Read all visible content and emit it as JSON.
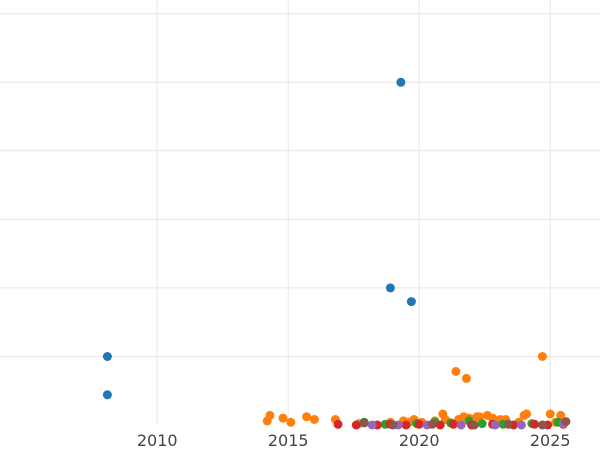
{
  "chart_data": {
    "type": "scatter",
    "title": "",
    "xlabel": "",
    "ylabel": "",
    "grid": true,
    "xlim": [
      2004.0,
      2026.9
    ],
    "ylim": [
      0,
      31
    ],
    "x_ticks": [
      2010,
      2015,
      2020,
      2025
    ],
    "x_tick_labels": [
      "2010",
      "2015",
      "2020",
      "2025"
    ],
    "series": [
      {
        "color": "#1f77b4",
        "points": [
          {
            "x": 2008.1,
            "y": 5.0
          },
          {
            "x": 2008.1,
            "y": 2.2
          },
          {
            "x": 2018.9,
            "y": 10.0
          },
          {
            "x": 2019.3,
            "y": 25.0
          },
          {
            "x": 2019.7,
            "y": 9.0
          }
        ]
      },
      {
        "color": "#ff7f0e",
        "points": [
          {
            "x": 2014.2,
            "y": 0.3
          },
          {
            "x": 2014.3,
            "y": 0.7
          },
          {
            "x": 2014.8,
            "y": 0.5
          },
          {
            "x": 2015.1,
            "y": 0.2
          },
          {
            "x": 2015.7,
            "y": 0.6
          },
          {
            "x": 2016.0,
            "y": 0.4
          },
          {
            "x": 2016.8,
            "y": 0.4
          },
          {
            "x": 2017.7,
            "y": 0.1
          },
          {
            "x": 2018.9,
            "y": 0.2
          },
          {
            "x": 2019.4,
            "y": 0.3
          },
          {
            "x": 2019.6,
            "y": 0.2
          },
          {
            "x": 2019.8,
            "y": 0.4
          },
          {
            "x": 2020.1,
            "y": 0.2
          },
          {
            "x": 2020.6,
            "y": 0.3
          },
          {
            "x": 2020.9,
            "y": 0.8
          },
          {
            "x": 2021.0,
            "y": 0.4
          },
          {
            "x": 2021.4,
            "y": 3.9
          },
          {
            "x": 2021.5,
            "y": 0.4
          },
          {
            "x": 2021.7,
            "y": 0.6
          },
          {
            "x": 2021.8,
            "y": 3.4
          },
          {
            "x": 2021.9,
            "y": 0.5
          },
          {
            "x": 2022.2,
            "y": 0.6
          },
          {
            "x": 2022.3,
            "y": 0.6
          },
          {
            "x": 2022.6,
            "y": 0.7
          },
          {
            "x": 2022.8,
            "y": 0.5
          },
          {
            "x": 2023.1,
            "y": 0.4
          },
          {
            "x": 2023.3,
            "y": 0.4
          },
          {
            "x": 2023.8,
            "y": 0.2
          },
          {
            "x": 2024.0,
            "y": 0.7
          },
          {
            "x": 2024.1,
            "y": 0.8
          },
          {
            "x": 2024.7,
            "y": 5.0
          },
          {
            "x": 2025.0,
            "y": 0.8
          },
          {
            "x": 2025.2,
            "y": 0.2
          },
          {
            "x": 2025.4,
            "y": 0.7
          }
        ]
      },
      {
        "color": "#2ca02c",
        "points": [
          {
            "x": 2017.9,
            "y": 0.2
          },
          {
            "x": 2018.7,
            "y": 0.05
          },
          {
            "x": 2019.9,
            "y": 0.1
          },
          {
            "x": 2020.6,
            "y": 0.2
          },
          {
            "x": 2021.2,
            "y": 0.15
          },
          {
            "x": 2021.9,
            "y": 0.3
          },
          {
            "x": 2022.4,
            "y": 0.1
          },
          {
            "x": 2023.2,
            "y": 0.05
          },
          {
            "x": 2024.3,
            "y": 0.1
          },
          {
            "x": 2025.3,
            "y": 0.2
          }
        ]
      },
      {
        "color": "#d62728",
        "points": [
          {
            "x": 2016.9,
            "y": 0.05
          },
          {
            "x": 2017.6,
            "y": 0.0
          },
          {
            "x": 2018.4,
            "y": 0.0
          },
          {
            "x": 2018.9,
            "y": 0.05
          },
          {
            "x": 2019.5,
            "y": 0.0
          },
          {
            "x": 2020.0,
            "y": 0.05
          },
          {
            "x": 2020.8,
            "y": 0.0
          },
          {
            "x": 2021.3,
            "y": 0.05
          },
          {
            "x": 2022.0,
            "y": 0.0
          },
          {
            "x": 2022.8,
            "y": 0.05
          },
          {
            "x": 2023.6,
            "y": 0.0
          },
          {
            "x": 2024.4,
            "y": 0.05
          },
          {
            "x": 2024.9,
            "y": 0.0
          },
          {
            "x": 2025.5,
            "y": 0.05
          }
        ]
      },
      {
        "color": "#9467bd",
        "points": [
          {
            "x": 2018.2,
            "y": 0.0
          },
          {
            "x": 2019.2,
            "y": 0.0
          },
          {
            "x": 2020.3,
            "y": 0.0
          },
          {
            "x": 2021.6,
            "y": 0.0
          },
          {
            "x": 2022.9,
            "y": 0.0
          },
          {
            "x": 2023.9,
            "y": 0.0
          },
          {
            "x": 2025.5,
            "y": 0.1
          }
        ]
      },
      {
        "color": "#8c564b",
        "points": [
          {
            "x": 2017.9,
            "y": 0.15
          },
          {
            "x": 2019.0,
            "y": 0.0
          },
          {
            "x": 2020.5,
            "y": 0.05
          },
          {
            "x": 2022.1,
            "y": 0.0
          },
          {
            "x": 2023.4,
            "y": 0.05
          },
          {
            "x": 2024.7,
            "y": 0.0
          },
          {
            "x": 2025.6,
            "y": 0.25
          }
        ]
      }
    ]
  }
}
